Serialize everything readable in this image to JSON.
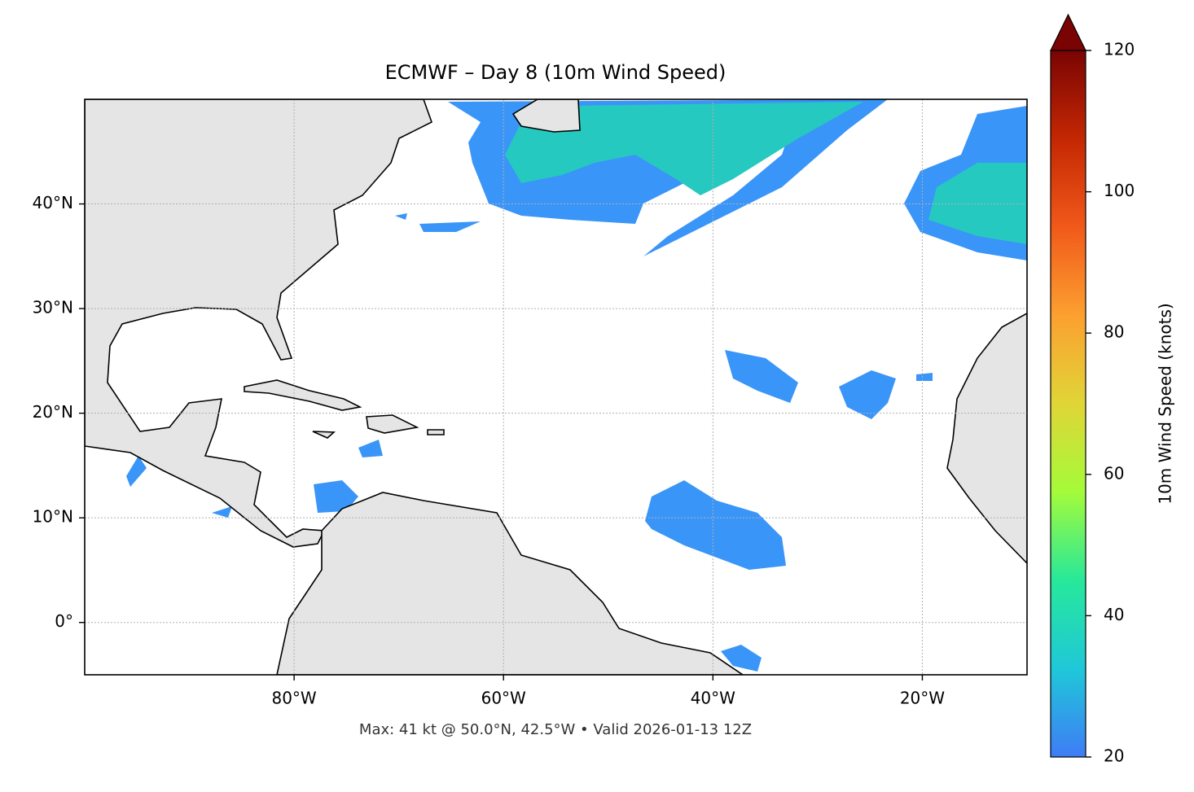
{
  "chart_data": {
    "type": "map",
    "title": "ECMWF – Day 8 (10m Wind Speed)",
    "footnote": "Max: 41 kt @ 50.0°N, 42.5°W • Valid 2026-01-13 12Z",
    "xlim": [
      -100,
      -10
    ],
    "ylim": [
      -5,
      50
    ],
    "xticks": [
      {
        "value": -80,
        "label": "80°W"
      },
      {
        "value": -60,
        "label": "60°W"
      },
      {
        "value": -40,
        "label": "40°W"
      },
      {
        "value": -20,
        "label": "20°W"
      }
    ],
    "yticks": [
      {
        "value": 0,
        "label": "0°"
      },
      {
        "value": 10,
        "label": "10°N"
      },
      {
        "value": 20,
        "label": "20°N"
      },
      {
        "value": 30,
        "label": "30°N"
      },
      {
        "value": 40,
        "label": "40°N"
      }
    ],
    "grid": true,
    "colorbar": {
      "label": "10m Wind Speed (knots)",
      "lim": [
        20,
        120
      ],
      "ticks": [
        20,
        40,
        60,
        80,
        100,
        120
      ],
      "colormap": [
        "#3f7cf6",
        "#1fc8d8",
        "#27e89a",
        "#a4fb3a",
        "#e0d537",
        "#fca030",
        "#f1591a",
        "#c42703",
        "#7a0403"
      ],
      "extend": "max"
    }
  }
}
